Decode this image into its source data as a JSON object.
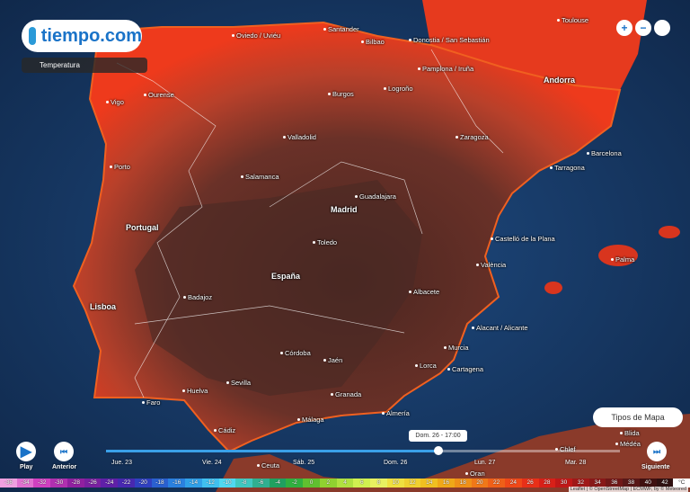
{
  "header": {
    "logo": "tiempo.com",
    "layer": "Temperatura"
  },
  "places": [
    "Oviedo / Uviéu",
    "Santander",
    "Bilbao",
    "Donostia / San Sebastián",
    "Toulouse",
    "Pamplona / Iruña",
    "Andorra",
    "Logroño",
    "Burgos",
    "Ourense",
    "Vigo",
    "Valladolid",
    "Zaragoza",
    "Barcelona",
    "Tarragona",
    "Porto",
    "Salamanca",
    "Guadalajara",
    "Madrid",
    "Portugal",
    "Toledo",
    "Castelló de la Plana",
    "Palma",
    "València",
    "España",
    "Badajoz",
    "Lisboa",
    "Albacete",
    "Alacant / Alicante",
    "Murcia",
    "Córdoba",
    "Jaén",
    "Sevilla",
    "Lorca",
    "Cartagena",
    "Huelva",
    "Faro",
    "Granada",
    "Almería",
    "Málaga",
    "Cádiz",
    "Ceuta",
    "Oran",
    "Chlef",
    "Médéa",
    "Blida"
  ],
  "controls": {
    "zoom_in": "+",
    "zoom_out": "−",
    "map_types": "Tipos de Mapa",
    "play": "Play",
    "previous": "Anterior",
    "next": "Siguiente"
  },
  "timeline": {
    "days": [
      "Jue. 23",
      "Vie. 24",
      "Sáb. 25",
      "Dom. 26",
      "Lun. 27",
      "Mar. 28"
    ],
    "current": "Dom. 26 - 17:00"
  },
  "legend": {
    "values": [
      -36,
      -34,
      -32,
      -30,
      -28,
      -26,
      -24,
      -22,
      -20,
      -18,
      -16,
      -14,
      -12,
      -10,
      -8,
      -6,
      -4,
      -2,
      0,
      2,
      4,
      6,
      8,
      10,
      12,
      14,
      16,
      18,
      20,
      22,
      24,
      26,
      28,
      30,
      32,
      34,
      36,
      38,
      40,
      42
    ],
    "colors": [
      "#f0a0e0",
      "#e070d0",
      "#d040c0",
      "#b030b0",
      "#9020a0",
      "#7a20a0",
      "#6020a8",
      "#4828b0",
      "#3040c0",
      "#2a60d0",
      "#2a80e0",
      "#30a0e8",
      "#40c0f0",
      "#50d8f0",
      "#40c8c0",
      "#30b090",
      "#20a060",
      "#30b040",
      "#60c030",
      "#90d030",
      "#b0e040",
      "#d0f050",
      "#e8f060",
      "#f0e040",
      "#f0d030",
      "#f0c020",
      "#f0a818",
      "#f09018",
      "#f07818",
      "#f06018",
      "#f04818",
      "#e83018",
      "#d82018",
      "#c01818",
      "#a01818",
      "#881818",
      "#701818",
      "#581818",
      "#401010",
      "#301010"
    ],
    "unit": "°C"
  },
  "attribution": "Leaflet | © OpenStreetMap | ECMWF, by © Meteored"
}
